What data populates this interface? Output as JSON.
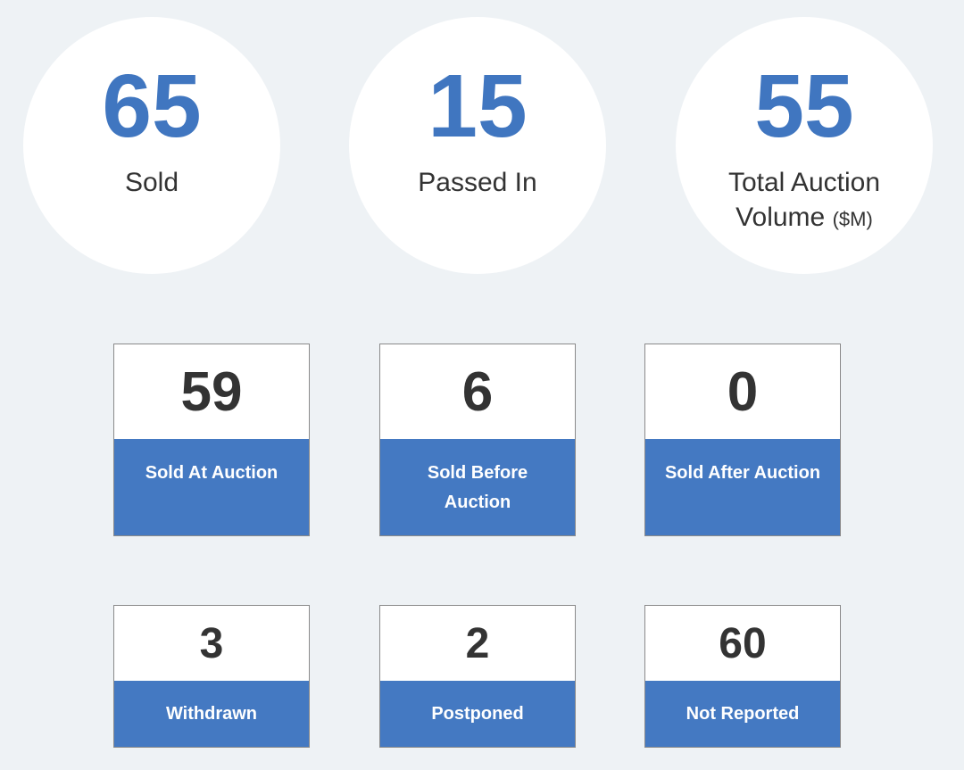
{
  "summary": {
    "sold": {
      "value": "65",
      "label": "Sold"
    },
    "passed_in": {
      "value": "15",
      "label": "Passed In"
    },
    "total_volume": {
      "value": "55",
      "label_line1": "Total Auction",
      "label_line2": "Volume",
      "unit": "($M)"
    }
  },
  "cards": {
    "sold_at_auction": {
      "value": "59",
      "label": "Sold At Auction"
    },
    "sold_before_auction": {
      "value": "6",
      "label": "Sold Before Auction"
    },
    "sold_after_auction": {
      "value": "0",
      "label": "Sold After Auction"
    },
    "withdrawn": {
      "value": "3",
      "label": "Withdrawn"
    },
    "postponed": {
      "value": "2",
      "label": "Postponed"
    },
    "not_reported": {
      "value": "60",
      "label": "Not Reported"
    }
  },
  "colors": {
    "background": "#eef2f5",
    "accent_blue": "#4076c0",
    "card_label_blue": "#4479c2",
    "text_dark": "#333333"
  }
}
